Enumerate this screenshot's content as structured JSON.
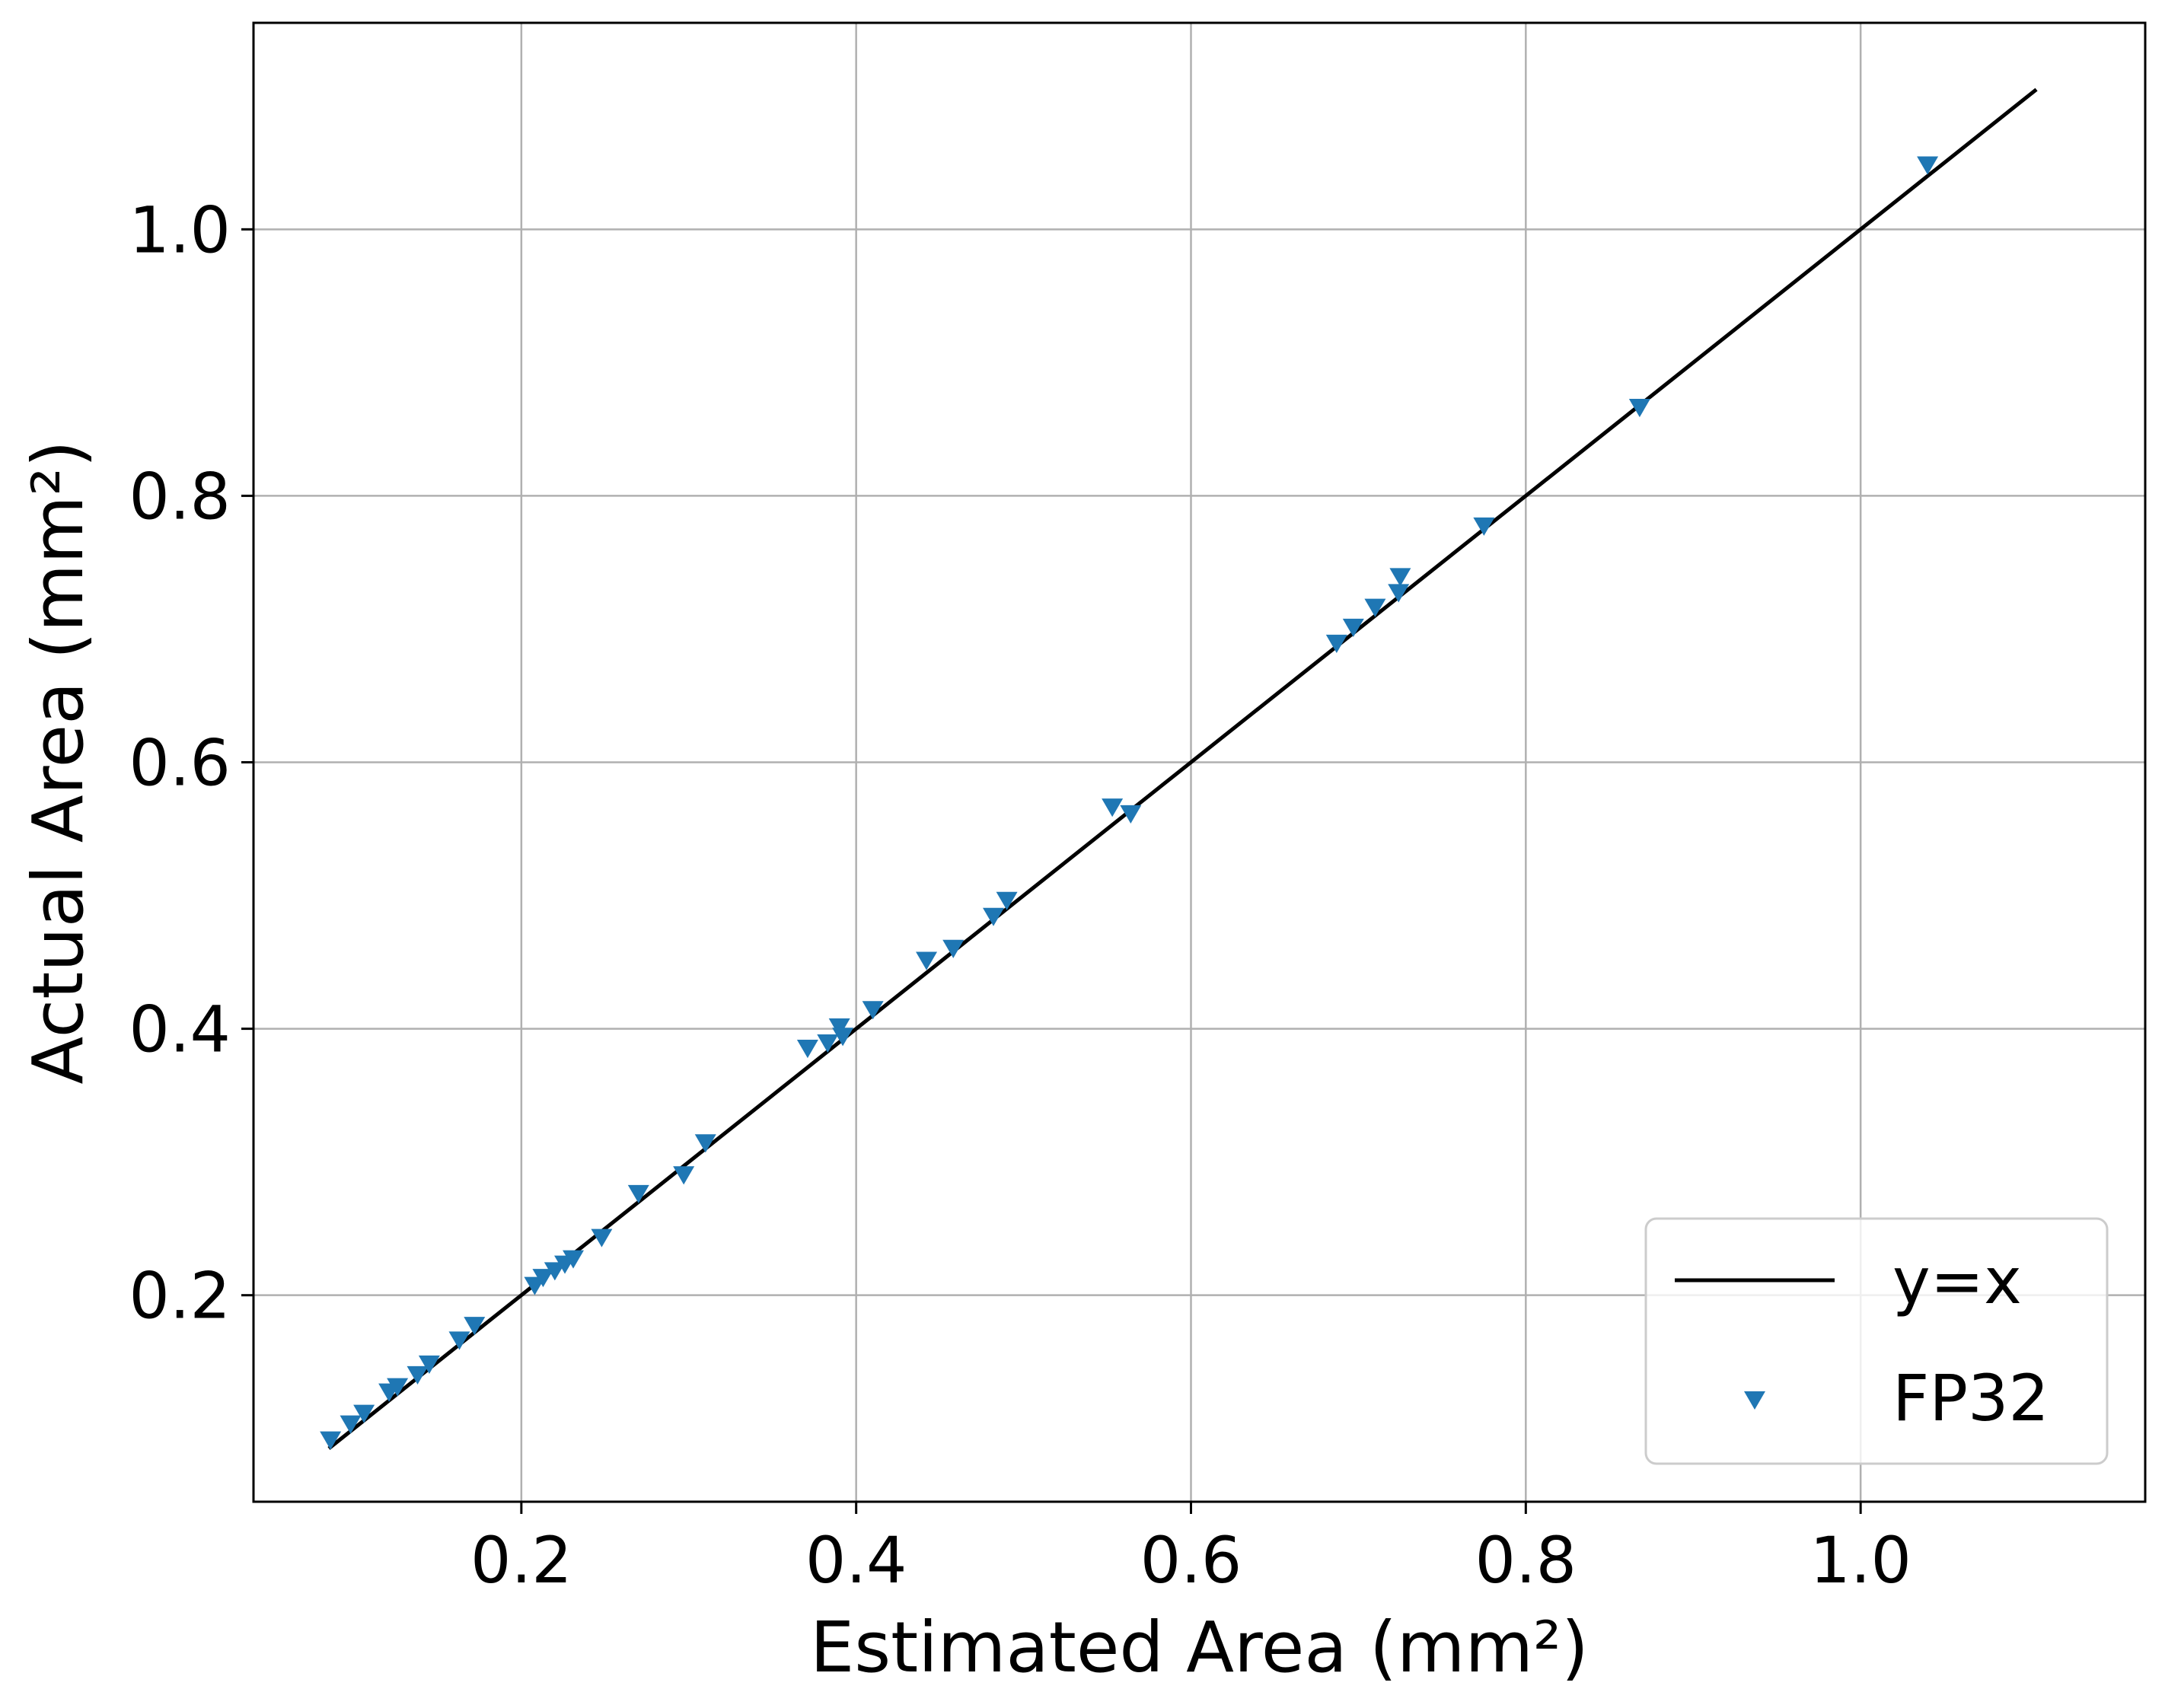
{
  "chart_data": {
    "type": "scatter",
    "xlabel": "Estimated Area (mm²)",
    "ylabel": "Actual Area (mm²)",
    "xlim": [
      0.04,
      1.17
    ],
    "ylim": [
      0.045,
      1.155
    ],
    "xticks": [
      0.2,
      0.4,
      0.6,
      0.8,
      1.0
    ],
    "yticks": [
      0.2,
      0.4,
      0.6,
      0.8,
      1.0
    ],
    "xtick_labels": [
      "0.2",
      "0.4",
      "0.6",
      "0.8",
      "1.0"
    ],
    "ytick_labels": [
      "0.2",
      "0.4",
      "0.6",
      "0.8",
      "1.0"
    ],
    "grid": true,
    "legend_position": "bottom-right",
    "line_series": {
      "name": "y=x",
      "color": "#000000",
      "x": [
        0.085,
        1.105
      ],
      "y": [
        0.085,
        1.105
      ]
    },
    "scatter_series": {
      "name": "FP32",
      "color": "#1f77b4",
      "marker": "triangle-down",
      "points": [
        [
          0.086,
          0.092
        ],
        [
          0.098,
          0.104
        ],
        [
          0.106,
          0.112
        ],
        [
          0.121,
          0.128
        ],
        [
          0.126,
          0.132
        ],
        [
          0.138,
          0.141
        ],
        [
          0.145,
          0.149
        ],
        [
          0.163,
          0.167
        ],
        [
          0.172,
          0.178
        ],
        [
          0.208,
          0.208
        ],
        [
          0.213,
          0.214
        ],
        [
          0.22,
          0.219
        ],
        [
          0.226,
          0.224
        ],
        [
          0.231,
          0.228
        ],
        [
          0.248,
          0.244
        ],
        [
          0.27,
          0.277
        ],
        [
          0.297,
          0.291
        ],
        [
          0.31,
          0.315
        ],
        [
          0.371,
          0.386
        ],
        [
          0.383,
          0.39
        ],
        [
          0.39,
          0.402
        ],
        [
          0.392,
          0.395
        ],
        [
          0.41,
          0.415
        ],
        [
          0.442,
          0.452
        ],
        [
          0.458,
          0.461
        ],
        [
          0.482,
          0.485
        ],
        [
          0.49,
          0.497
        ],
        [
          0.553,
          0.567
        ],
        [
          0.564,
          0.562
        ],
        [
          0.687,
          0.69
        ],
        [
          0.697,
          0.702
        ],
        [
          0.71,
          0.717
        ],
        [
          0.724,
          0.728
        ],
        [
          0.725,
          0.74
        ],
        [
          0.775,
          0.778
        ],
        [
          0.868,
          0.867
        ],
        [
          1.04,
          1.049
        ]
      ]
    }
  }
}
